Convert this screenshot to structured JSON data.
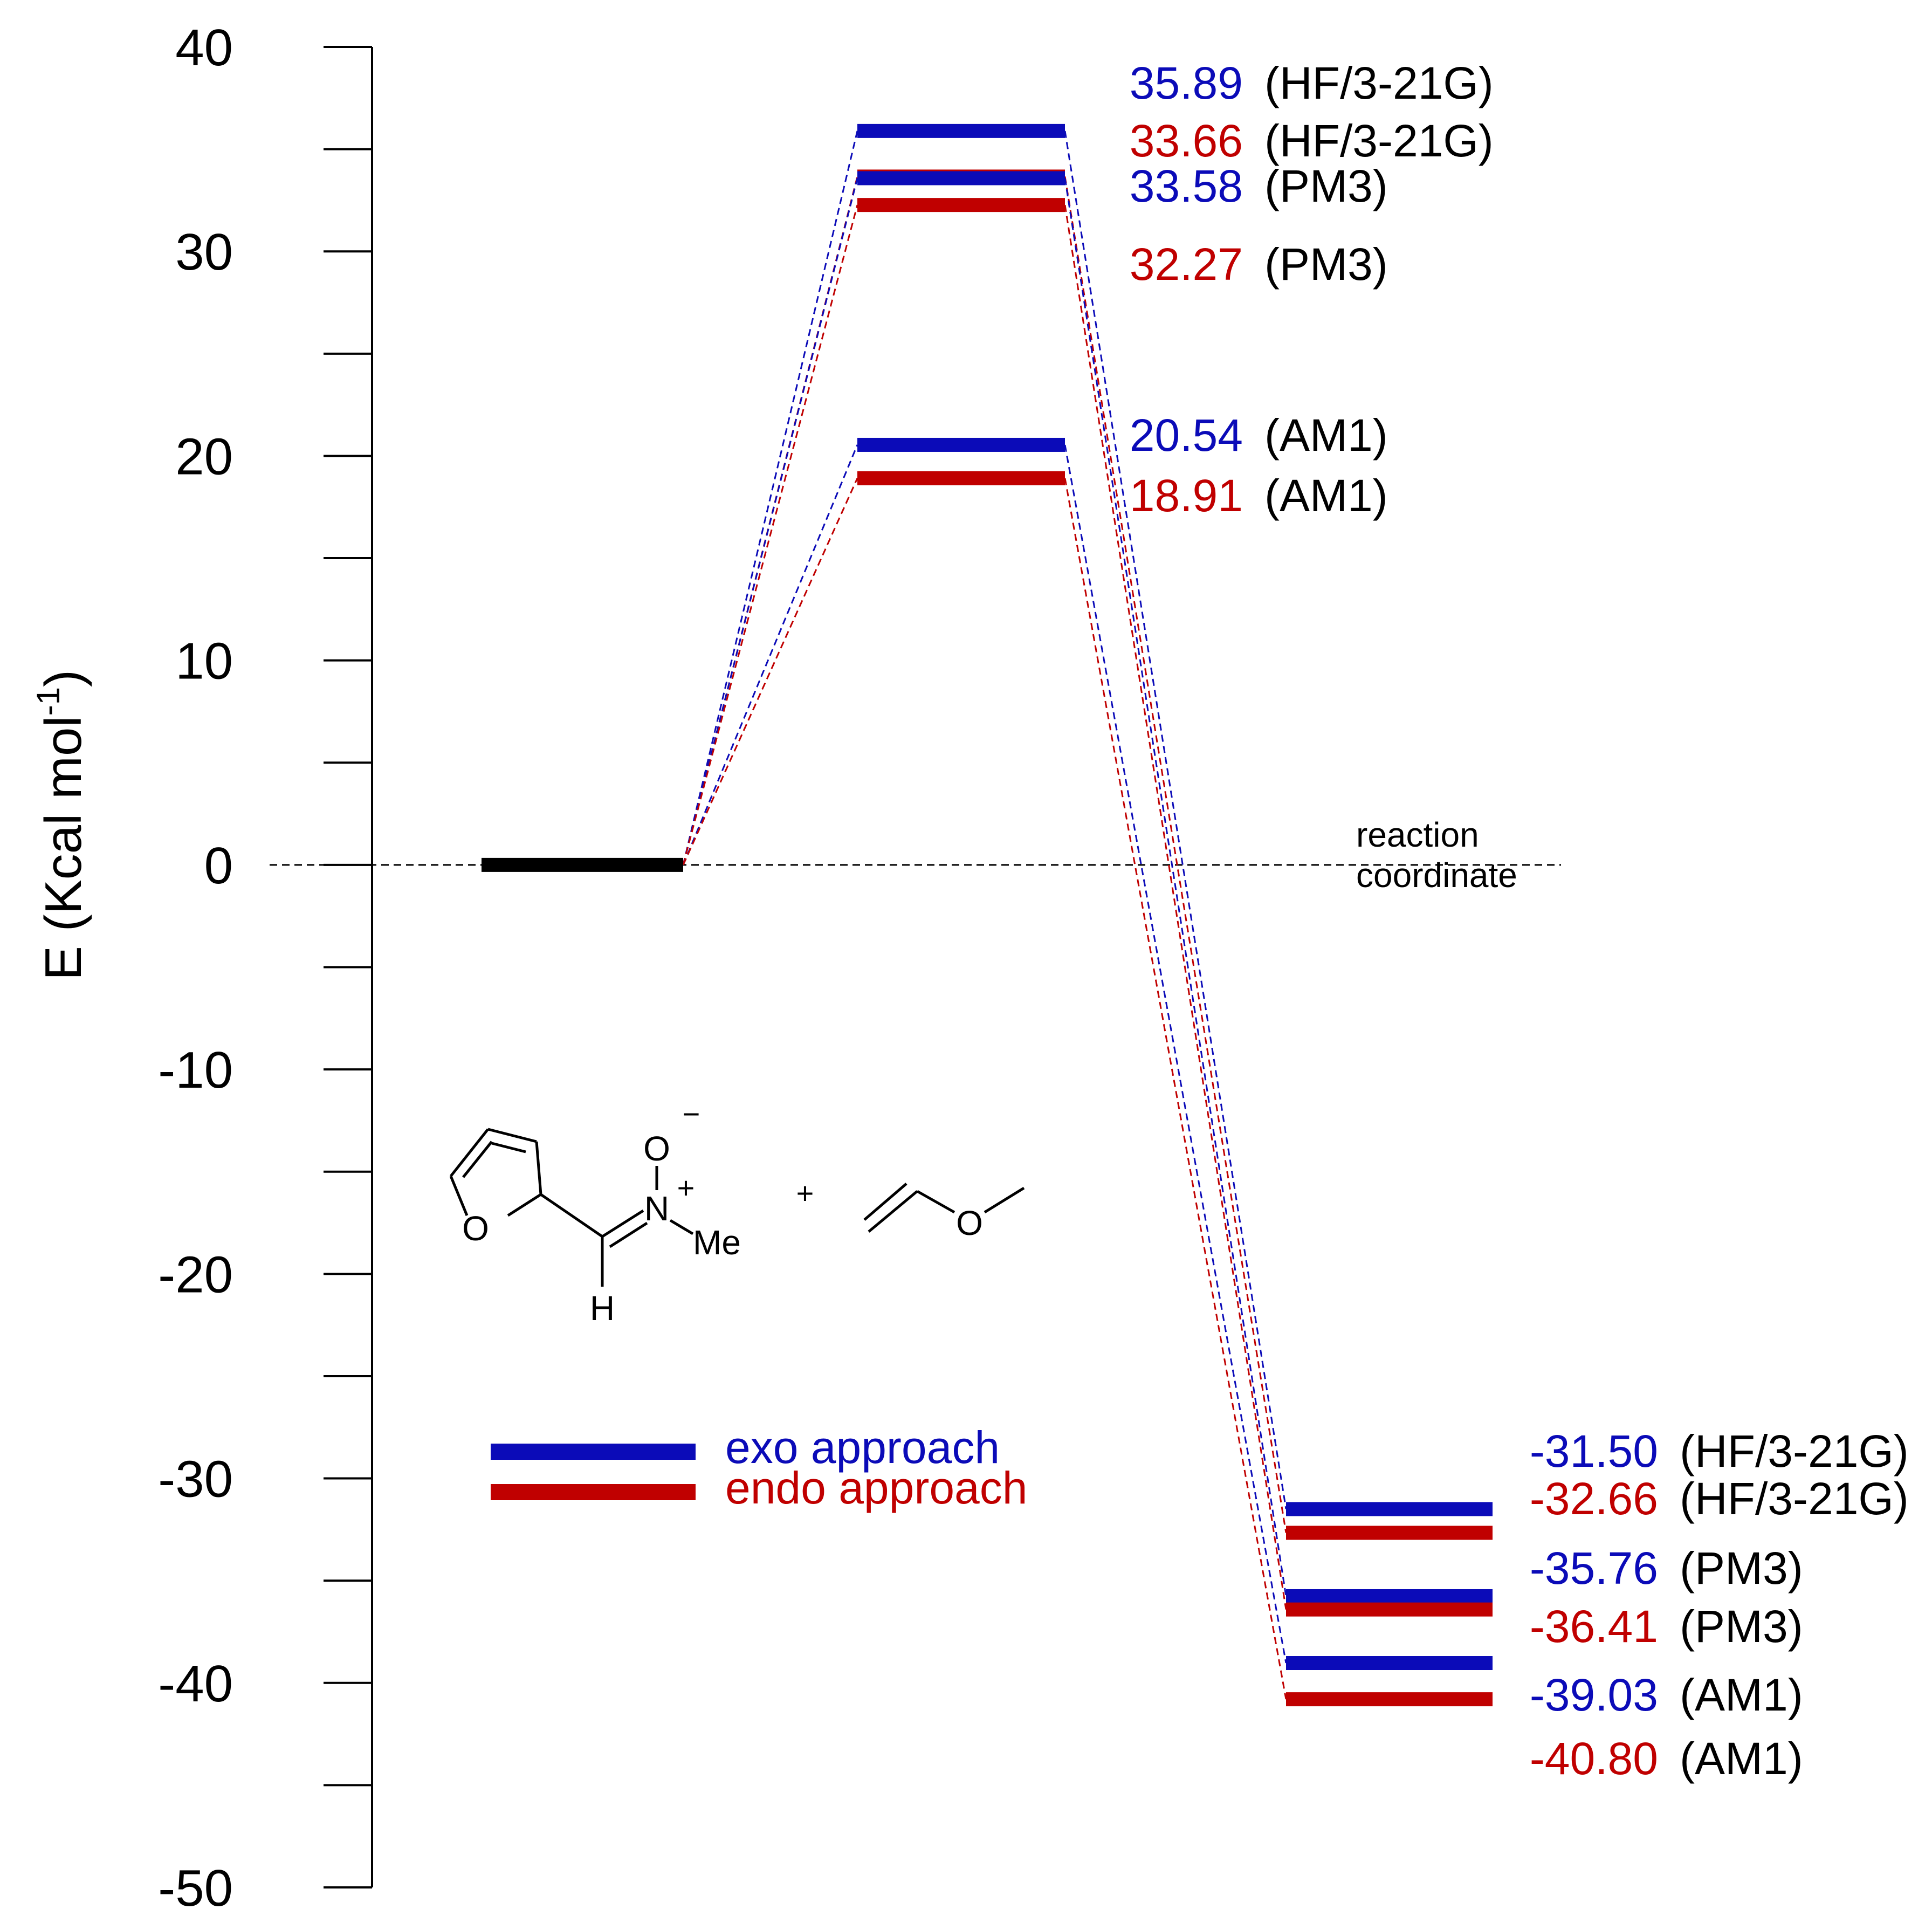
{
  "chart_data": {
    "type": "energy-level-diagram",
    "ylabel": "E (Kcal mol",
    "ylabel_sup": "-1",
    "ylabel_close": ")",
    "ylim": [
      -50,
      40
    ],
    "yticks_major": [
      40,
      30,
      20,
      10,
      0,
      -10,
      -20,
      -30,
      -40,
      -50
    ],
    "ytick_labels": [
      "40",
      "30",
      "20",
      "10",
      "0",
      "-10",
      "-20",
      "-30",
      "-40",
      "-50"
    ],
    "minor_tick_step": 5,
    "reference_label_line1": "reaction",
    "reference_label_line2": "coordinate",
    "reactant_level": 0,
    "colors": {
      "exo": "#0b0bb8",
      "endo": "#c00000",
      "reactant": "#000000"
    },
    "legend": [
      {
        "key": "exo",
        "label": "exo approach"
      },
      {
        "key": "endo",
        "label": "endo approach"
      }
    ],
    "transition_states": [
      {
        "approach": "exo",
        "value": 35.89,
        "label": "35.89",
        "method": "(HF/3-21G)"
      },
      {
        "approach": "endo",
        "value": 33.66,
        "label": "33.66",
        "method": "(HF/3-21G)"
      },
      {
        "approach": "exo",
        "value": 33.58,
        "label": "33.58",
        "method": "(PM3)"
      },
      {
        "approach": "endo",
        "value": 32.27,
        "label": "32.27",
        "method": "(PM3)"
      },
      {
        "approach": "exo",
        "value": 20.54,
        "label": "20.54",
        "method": "(AM1)"
      },
      {
        "approach": "endo",
        "value": 18.91,
        "label": "18.91",
        "method": "(AM1)"
      }
    ],
    "products": [
      {
        "approach": "exo",
        "value": -31.5,
        "label": "-31.50",
        "method": "(HF/3-21G)"
      },
      {
        "approach": "endo",
        "value": -32.66,
        "label": "-32.66",
        "method": "(HF/3-21G)"
      },
      {
        "approach": "exo",
        "value": -35.76,
        "label": "-35.76",
        "method": "(PM3)"
      },
      {
        "approach": "endo",
        "value": -36.41,
        "label": "-36.41",
        "method": "(PM3)"
      },
      {
        "approach": "exo",
        "value": -39.03,
        "label": "-39.03",
        "method": "(AM1)"
      },
      {
        "approach": "endo",
        "value": -40.8,
        "label": "-40.80",
        "method": "(AM1)"
      }
    ]
  },
  "molecule": {
    "atom_O_furan": "O",
    "atom_O_oxide": "O",
    "atom_N": "N",
    "charge_minus": "−",
    "charge_plus": "+",
    "methyl": "Me",
    "hydrogen": "H",
    "plus_sign": "+",
    "atom_O_ether": "O"
  }
}
